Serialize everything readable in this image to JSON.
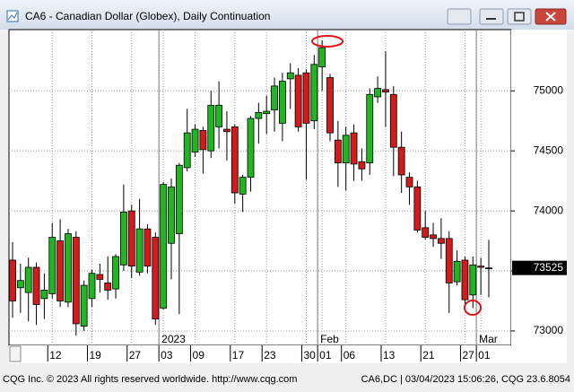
{
  "chart_data": {
    "type": "candlestick",
    "title": "CA6 - Canadian Dollar (Globex), Daily Continuation",
    "footer_left": "CQG Inc. © 2023 All rights reserved worldwide. http://www.cqg.com",
    "footer_right": "CA6,DC | 03/04/2023 15:06:26, CQG 23.6.8054",
    "categories": [
      null,
      null,
      null,
      null,
      null,
      "12",
      null,
      null,
      null,
      null,
      "19",
      null,
      null,
      null,
      null,
      "27",
      null,
      null,
      null,
      "03",
      null,
      null,
      null,
      "09",
      null,
      null,
      null,
      null,
      "17",
      null,
      null,
      null,
      "23",
      null,
      null,
      null,
      null,
      "30",
      null,
      "01",
      null,
      null,
      "06",
      null,
      null,
      null,
      null,
      "13",
      null,
      null,
      null,
      null,
      "21",
      null,
      null,
      null,
      null,
      "27",
      null,
      "01",
      null
    ],
    "periods": [
      null,
      null,
      null,
      null,
      null,
      null,
      null,
      null,
      null,
      null,
      null,
      null,
      null,
      null,
      null,
      null,
      null,
      null,
      null,
      "2023",
      null,
      null,
      null,
      null,
      null,
      null,
      null,
      null,
      null,
      null,
      null,
      null,
      null,
      null,
      null,
      null,
      null,
      null,
      null,
      "Feb",
      null,
      null,
      null,
      null,
      null,
      null,
      null,
      null,
      null,
      null,
      null,
      null,
      null,
      null,
      null,
      null,
      null,
      null,
      null,
      "Mar",
      null
    ],
    "open": [
      73590,
      73360,
      73320,
      73530,
      73270,
      73310,
      73750,
      73240,
      73780,
      73040,
      73270,
      73470,
      73400,
      73350,
      73550,
      74000,
      73490,
      73850,
      73780,
      73190,
      73730,
      73810,
      74360,
      74490,
      74670,
      74500,
      74700,
      74680,
      74700,
      74140,
      74280,
      74770,
      74810,
      74840,
      74730,
      75100,
      75130,
      75150,
      74750,
      75200,
      75110,
      74590,
      74400,
      74650,
      74410,
      74400,
      74950,
      75010,
      74970,
      74530,
      74280,
      74200,
      73860,
      73800,
      73770,
      73770,
      73410,
      73590,
      73300,
      73540,
      73520
    ],
    "high": [
      73740,
      73560,
      73610,
      73570,
      73480,
      73900,
      73930,
      73850,
      73830,
      73420,
      73510,
      73560,
      73620,
      73640,
      74220,
      74050,
      74100,
      73890,
      73820,
      74240,
      74270,
      74400,
      74850,
      74720,
      74700,
      75000,
      75080,
      74830,
      74720,
      74300,
      74790,
      74900,
      74960,
      75110,
      75150,
      75230,
      75190,
      75180,
      75300,
      75420,
      75140,
      74750,
      74700,
      74720,
      74520,
      75020,
      75120,
      75330,
      75040,
      74660,
      74320,
      74250,
      74000,
      73900,
      73940,
      73830,
      73670,
      73620,
      73620,
      73610,
      73760
    ],
    "low": [
      73110,
      73150,
      73080,
      73050,
      73100,
      73270,
      73200,
      73200,
      72960,
      73000,
      73200,
      73320,
      73260,
      73270,
      73500,
      73440,
      73460,
      73480,
      73050,
      73180,
      73430,
      73140,
      74330,
      74450,
      74310,
      74440,
      74520,
      74420,
      74060,
      73990,
      74160,
      74560,
      74640,
      74660,
      74580,
      74850,
      74660,
      74260,
      74680,
      75000,
      74580,
      74200,
      74170,
      74250,
      74250,
      74300,
      74900,
      74700,
      74290,
      74150,
      74050,
      73820,
      73760,
      73700,
      73600,
      73150,
      73380,
      73220,
      73190,
      73300,
      73280
    ],
    "close": [
      73250,
      73420,
      73530,
      73220,
      73340,
      73780,
      73250,
      73810,
      73060,
      73380,
      73480,
      73430,
      73340,
      73620,
      73990,
      73540,
      73850,
      73540,
      73100,
      74220,
      74200,
      74380,
      74650,
      74680,
      74510,
      74880,
      74880,
      74660,
      74150,
      74280,
      74770,
      74820,
      74830,
      75040,
      75080,
      75150,
      74700,
      74730,
      75220,
      75360,
      74650,
      74400,
      74630,
      74390,
      74350,
      74970,
      75020,
      74990,
      74530,
      74300,
      74200,
      73840,
      73780,
      73770,
      73730,
      73400,
      73580,
      73260,
      73550,
      73530,
      73525
    ],
    "up_color": "#21b521",
    "down_color": "#d21b1b",
    "last_price": 73525,
    "ylim": [
      72880,
      75510
    ],
    "yticks": [
      73000,
      73500,
      74000,
      74500,
      75000
    ],
    "grid": true
  }
}
